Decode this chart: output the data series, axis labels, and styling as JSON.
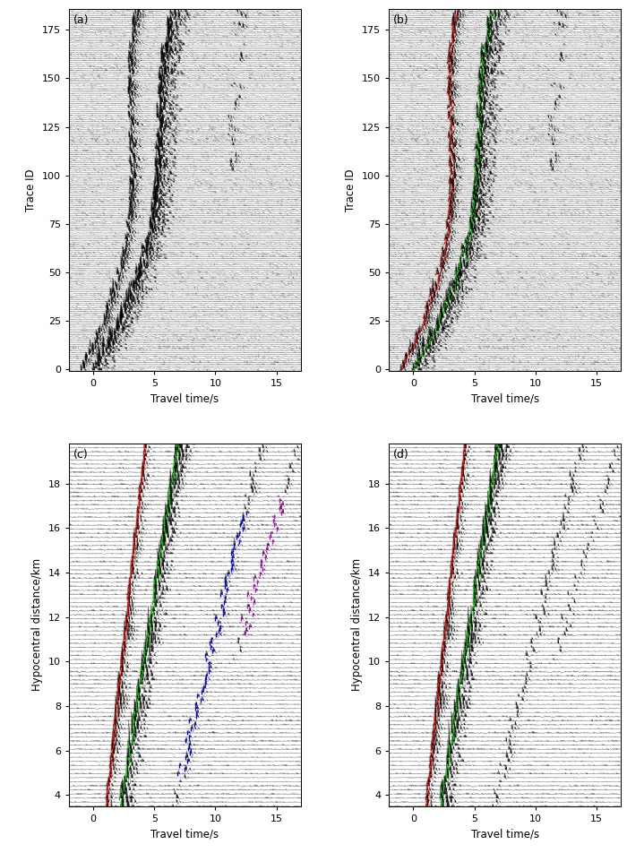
{
  "panels": [
    "(a)",
    "(b)",
    "(c)",
    "(d)"
  ],
  "panel_ab_xlabel": "Travel time/s",
  "panel_cd_xlabel": "Travel time/s",
  "panel_ab_ylabel": "Trace ID",
  "panel_cd_ylabel": "Hypocentral distance/km",
  "panel_ab_xlim": [
    -2,
    17
  ],
  "panel_cd_xlim": [
    -2,
    17
  ],
  "panel_ab_ylim": [
    -1,
    186
  ],
  "panel_cd_ylim": [
    3.5,
    19.8
  ],
  "panel_ab_xticks": [
    0,
    5,
    10,
    15
  ],
  "panel_ab_xticklabels": [
    "0",
    "5",
    "10",
    "15"
  ],
  "panel_cd_xticks": [
    0,
    5,
    10,
    15
  ],
  "panel_cd_xticklabels": [
    "0",
    "5",
    "10",
    "15"
  ],
  "panel_ab_yticks": [
    0,
    25,
    50,
    75,
    100,
    125,
    150,
    175
  ],
  "panel_cd_yticks": [
    4,
    6,
    8,
    10,
    12,
    14,
    16,
    18
  ],
  "bg_color": "#ffffff",
  "trace_color": "#000000",
  "seed_ab": 12345,
  "seed_cd": 67890,
  "n_traces_ab": 185,
  "n_traces_cd": 90,
  "n_samples": 800
}
